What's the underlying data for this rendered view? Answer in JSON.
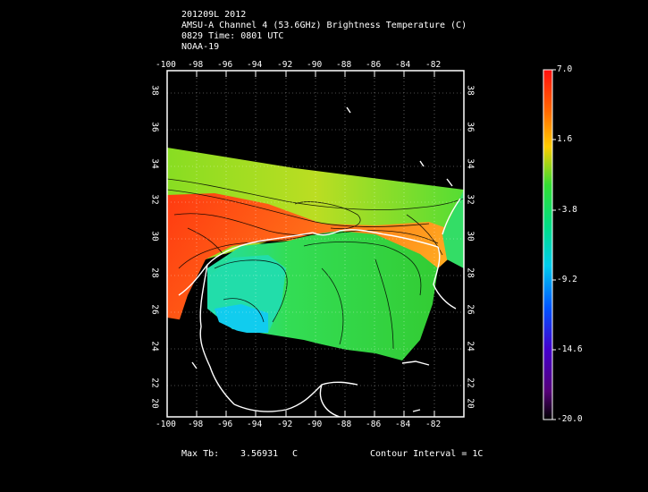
{
  "header": {
    "line1": "201209L 2012",
    "line2": "AMSU-A Channel 4 (53.6GHz) Brightness Temperature (C)",
    "line3": "0829 Time: 0801 UTC",
    "line4": "NOAA-19"
  },
  "map": {
    "lon_labels": [
      "-100",
      "-98",
      "-96",
      "-94",
      "-92",
      "-90",
      "-88",
      "-86",
      "-84",
      "-82"
    ],
    "lat_labels": [
      "38",
      "36",
      "34",
      "32",
      "30",
      "28",
      "26",
      "24",
      "22",
      "20"
    ],
    "lon_range": [
      -100,
      -80
    ],
    "lat_range": [
      19,
      39
    ],
    "grid": "dotted"
  },
  "colorbar": {
    "labels": [
      "7.0",
      "1.6",
      "-3.8",
      "-9.2",
      "-14.6",
      "-20.0"
    ],
    "min": -20.0,
    "max": 7.0,
    "colors": [
      "#ff1010",
      "#ff8800",
      "#ffee00",
      "#22dd22",
      "#00ddcc",
      "#0066ff",
      "#2200cc",
      "#660099",
      "#000000"
    ]
  },
  "footer": {
    "max_tb_label": "Max Tb:",
    "max_tb_value": "3.56931",
    "max_tb_unit": "C",
    "contour_interval": "Contour Interval = 1C"
  },
  "colors": {
    "background": "#000000",
    "warm": "#ff5a10",
    "mid": "#33dd33",
    "cool": "#22ddaa",
    "coast": "#ffffff"
  }
}
